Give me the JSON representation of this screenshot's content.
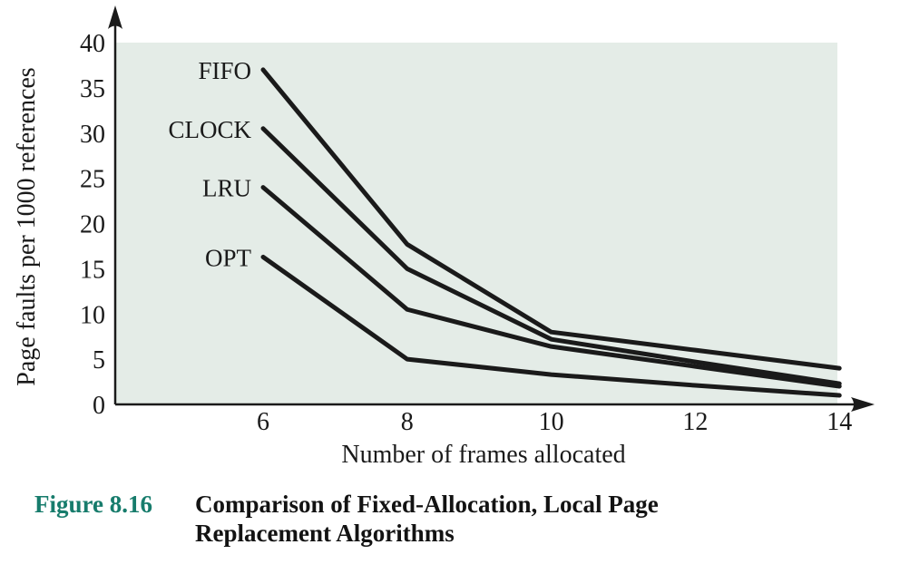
{
  "figure": {
    "caption_label": "Figure 8.16",
    "caption_title": "Comparison of Fixed-Allocation, Local Page Replacement Algorithms"
  },
  "colors": {
    "plot_background": "#E4ECE7",
    "line": "#1A1A1A",
    "axis": "#1A1A1A",
    "text": "#1A1A1A",
    "caption_accent": "#177C6C"
  },
  "chart_data": {
    "type": "line",
    "title": "",
    "xlabel": "Number of frames allocated",
    "ylabel": "Page faults per 1000 references",
    "x": [
      6,
      8,
      10,
      12,
      14
    ],
    "x_ticks": [
      6,
      8,
      10,
      12,
      14
    ],
    "y_ticks": [
      0,
      5,
      10,
      15,
      20,
      25,
      30,
      35,
      40
    ],
    "xlim": [
      4,
      14.5
    ],
    "ylim": [
      0,
      40
    ],
    "grid": false,
    "legend_position": "labels-at-line-start",
    "series": [
      {
        "name": "FIFO",
        "values": [
          37,
          17.7,
          8,
          6,
          4
        ]
      },
      {
        "name": "CLOCK",
        "values": [
          30.5,
          15,
          7.2,
          4.7,
          2.3
        ]
      },
      {
        "name": "LRU",
        "values": [
          24,
          10.5,
          6.4,
          4.2,
          2
        ]
      },
      {
        "name": "OPT",
        "values": [
          16.3,
          5,
          3.3,
          2.1,
          1
        ]
      }
    ]
  }
}
